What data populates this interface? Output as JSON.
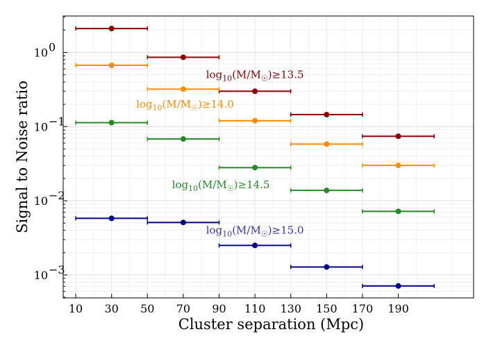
{
  "chart_data": {
    "type": "scatter",
    "xlabel": "Cluster separation (Mpc)",
    "ylabel": "Signal to Noise ratio",
    "yscale": "log",
    "xlim": [
      3,
      232
    ],
    "ylim": [
      0.00049,
      3.1
    ],
    "x_ticks": [
      10,
      30,
      50,
      70,
      90,
      110,
      130,
      150,
      170,
      190
    ],
    "x_tick_labels": [
      "10",
      "30",
      "50",
      "70",
      "90",
      "110",
      "130",
      "150",
      "170",
      "190"
    ],
    "y_ticks": [
      0.001,
      0.01,
      0.1,
      1
    ],
    "y_tick_labels": [
      "10",
      "10",
      "10",
      "10"
    ],
    "y_tick_exponents": [
      "−3",
      "−2",
      "−1",
      "0"
    ],
    "x": [
      30,
      70,
      110,
      150,
      190
    ],
    "x_err": 20,
    "series": [
      {
        "name": "log10(M/M☉)≥13.5",
        "color": "#8b0000",
        "values": [
          2.1,
          0.86,
          0.3,
          0.145,
          0.074
        ]
      },
      {
        "name": "log10(M/M☉)≥14.0",
        "color": "#ff8c00",
        "values": [
          0.67,
          0.32,
          0.12,
          0.058,
          0.03
        ]
      },
      {
        "name": "log10(M/M☉)≥14.5",
        "color": "#228b22",
        "values": [
          0.113,
          0.068,
          0.028,
          0.0138,
          0.0072
        ]
      },
      {
        "name": "log10(M/M☉)≥15.0",
        "color": "#00008b",
        "values": [
          0.0058,
          0.0051,
          0.0025,
          0.00128,
          0.00071
        ]
      }
    ],
    "annotations": [
      {
        "series": 0,
        "prefix": "log",
        "sub": "10",
        "text": "(M/M",
        "sun": "☉",
        "suffix": ")≥13.5",
        "color": "#8b0000",
        "x": 110,
        "y": 0.45
      },
      {
        "series": 1,
        "prefix": "log",
        "sub": "10",
        "text": "(M/M",
        "sun": "☉",
        "suffix": ")≥14.0",
        "color": "#ff8c00",
        "x": 71,
        "y": 0.18
      },
      {
        "series": 2,
        "prefix": "log",
        "sub": "10",
        "text": "(M/M",
        "sun": "☉",
        "suffix": ")≥14.5",
        "color": "#228b22",
        "x": 91,
        "y": 0.0148
      },
      {
        "series": 3,
        "prefix": "log",
        "sub": "10",
        "text": "(M/M",
        "sun": "☉",
        "suffix": ")≥15.0",
        "color": "#3333aa",
        "x": 110,
        "y": 0.0036
      }
    ]
  }
}
